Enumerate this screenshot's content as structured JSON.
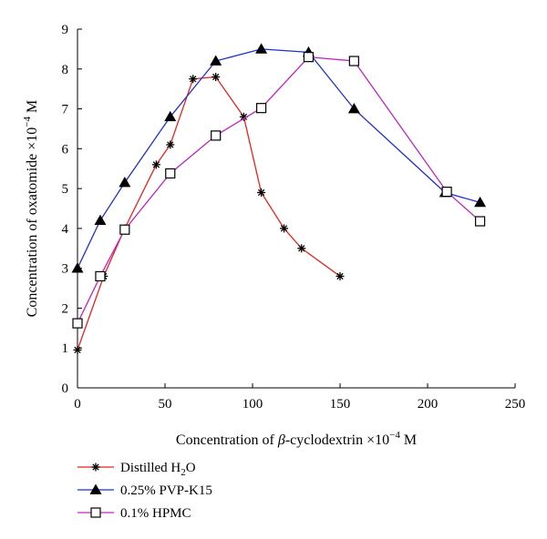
{
  "chart_data": {
    "type": "line",
    "title": "",
    "xlabel": {
      "prefix": "Concentration of ",
      "symbol": "β",
      "middle": "-cyclodextrin ×10",
      "exponent": "−4",
      "suffix": " M"
    },
    "ylabel": {
      "prefix": "Concentration of oxatomide ×10",
      "exponent": "−4",
      "suffix": " M"
    },
    "xlim": [
      0,
      250
    ],
    "ylim": [
      0,
      9
    ],
    "x_ticks": [
      0,
      50,
      100,
      150,
      200,
      250
    ],
    "y_ticks": [
      0,
      1,
      2,
      3,
      4,
      5,
      6,
      7,
      8,
      9
    ],
    "x_tick_labels": [
      "0",
      "50",
      "100",
      "150",
      "200",
      "250"
    ],
    "y_tick_labels": [
      "0",
      "1",
      "2",
      "3",
      "4",
      "5",
      "6",
      "7",
      "8",
      "9"
    ],
    "grid": false,
    "legend_position": "bottom-left",
    "series": [
      {
        "name": "Distilled H2O",
        "legend": {
          "main": "Distilled H",
          "sub": "2",
          "tail": "O"
        },
        "color": "#e8231f",
        "marker": "asterisk",
        "x": [
          0,
          15,
          27,
          45,
          53,
          66,
          79,
          95,
          105,
          118,
          128,
          150
        ],
        "y": [
          0.95,
          2.8,
          4.0,
          5.6,
          6.1,
          7.75,
          7.8,
          6.8,
          4.9,
          4.0,
          3.5,
          2.8
        ]
      },
      {
        "name": "0.25% PVP-K15",
        "legend": {
          "main": "0.25% PVP-K15",
          "sub": "",
          "tail": ""
        },
        "color": "#1f2fd6",
        "marker": "triangle",
        "x": [
          0,
          13,
          27,
          53,
          79,
          105,
          132,
          158,
          210,
          230
        ],
        "y": [
          3.0,
          4.2,
          5.15,
          6.8,
          8.2,
          8.5,
          8.42,
          7.0,
          4.9,
          4.65
        ]
      },
      {
        "name": "0.1% HPMC",
        "legend": {
          "main": "0.1%  HPMC",
          "sub": "",
          "tail": ""
        },
        "color": "#c024c4",
        "marker": "square",
        "x": [
          0,
          13,
          27,
          53,
          79,
          105,
          132,
          158,
          211,
          230
        ],
        "y": [
          1.62,
          2.8,
          3.97,
          5.38,
          6.33,
          7.02,
          8.3,
          8.2,
          4.92,
          4.18
        ]
      }
    ]
  }
}
